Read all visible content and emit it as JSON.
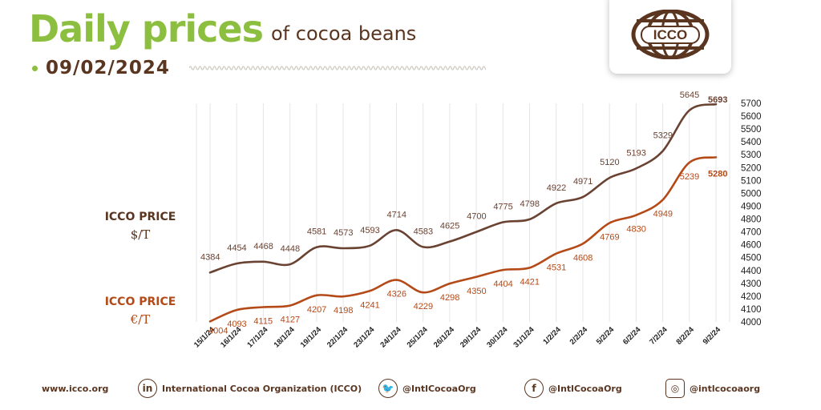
{
  "header": {
    "title": "Daily prices",
    "subtitle": "of cocoa beans",
    "date": "09/02/2024",
    "logo_text": "ICCO"
  },
  "labels": {
    "usd_line1": "ICCO PRICE",
    "usd_line2": "$/T",
    "eur_line1": "ICCO PRICE",
    "eur_line2": "€/T"
  },
  "colors": {
    "title_green": "#8cbe3f",
    "brown": "#5a3520",
    "usd_line": "#6a4232",
    "eur_line": "#b44a18"
  },
  "chart_data": {
    "type": "line",
    "categories": [
      "15/1/24",
      "16/1/24",
      "17/1/24",
      "18/1/24",
      "19/1/24",
      "22/1/24",
      "23/1/24",
      "24/1/24",
      "25/1/24",
      "26/1/24",
      "29/1/24",
      "30/1/24",
      "31/1/24",
      "1/2/24",
      "2/2/24",
      "5/2/24",
      "6/2/24",
      "7/2/24",
      "8/2/24",
      "9/2/24"
    ],
    "series": [
      {
        "name": "ICCO PRICE $/T",
        "values": [
          4384,
          4454,
          4468,
          4448,
          4581,
          4573,
          4593,
          4714,
          4583,
          4625,
          4700,
          4775,
          4798,
          4922,
          4971,
          5120,
          5193,
          5329,
          5645,
          5693
        ]
      },
      {
        "name": "ICCO PRICE €/T",
        "values": [
          4004,
          4093,
          4115,
          4127,
          4207,
          4198,
          4241,
          4326,
          4229,
          4298,
          4350,
          4404,
          4421,
          4531,
          4608,
          4769,
          4830,
          4949,
          5239,
          5280
        ]
      }
    ],
    "ylim": [
      4000,
      5700
    ],
    "yticks": [
      4000,
      4100,
      4200,
      4300,
      4400,
      4500,
      4600,
      4700,
      4800,
      4900,
      5000,
      5100,
      5200,
      5300,
      5400,
      5500,
      5600,
      5700
    ],
    "axis_position": "right",
    "grid": "vertical"
  },
  "footer": {
    "website": "www.icco.org",
    "linkedin": "International Cocoa Organization (ICCO)",
    "twitter": "@IntlCocoaOrg",
    "facebook": "@IntlCocoaOrg",
    "instagram": "@intlcocoaorg",
    "linkedin_icon": "in",
    "twitter_icon": "🐦",
    "facebook_icon": "f",
    "instagram_icon": "◎"
  }
}
